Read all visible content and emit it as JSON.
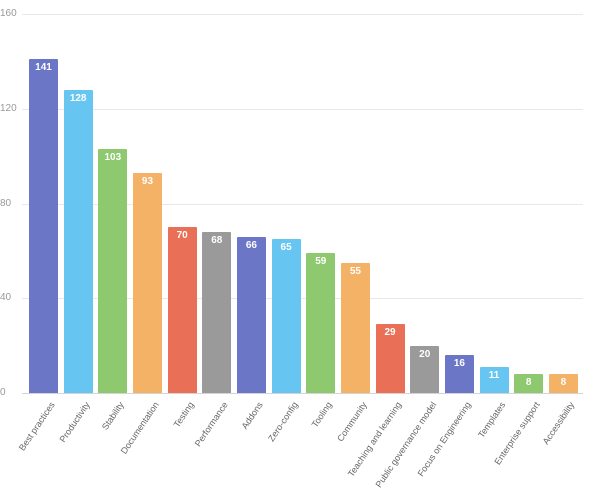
{
  "chart_data": {
    "type": "bar",
    "title": "",
    "xlabel": "",
    "ylabel": "",
    "categories": [
      "Best practices",
      "Productivity",
      "Stability",
      "Documentation",
      "Testing",
      "Performance",
      "Addons",
      "Zero-config",
      "Tooling",
      "Community",
      "Teaching and learning",
      "Public governance model",
      "Focus on Engineering",
      "Templates",
      "Enterprise support",
      "Accessibility"
    ],
    "values": [
      141,
      128,
      103,
      93,
      70,
      68,
      66,
      65,
      59,
      55,
      29,
      20,
      16,
      11,
      8,
      8
    ],
    "value_labels": [
      "141",
      "128",
      "103",
      "93",
      "70",
      "68",
      "66",
      "65",
      "59",
      "55",
      "29",
      "20",
      "16",
      "11",
      "8",
      "8"
    ],
    "bar_color_cycle": [
      "#6c76c6",
      "#67c6f1",
      "#8ec96f",
      "#f4b266",
      "#e97057",
      "#9a9a9a"
    ],
    "ylim": [
      0,
      160
    ],
    "yticks": [
      0,
      40,
      80,
      120,
      160
    ],
    "ytick_labels": [
      "0",
      "40",
      "80",
      "120",
      "160"
    ],
    "grid": true,
    "legend": false,
    "value_label_color": "#ffffff",
    "axis_text_color": "#999999",
    "category_text_color": "#666666",
    "gridline_color": "#e8e8e8",
    "baseline_color": "#d4d4d4"
  }
}
